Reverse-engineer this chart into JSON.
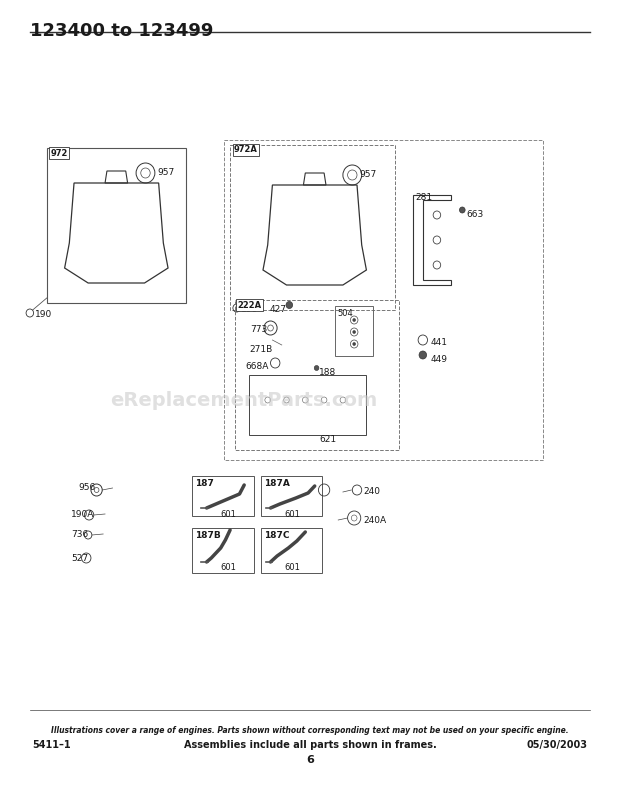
{
  "title": "123400 to 123499",
  "footer_italic": "Illustrations cover a range of engines. Parts shown without corresponding text may not be used on your specific engine.",
  "footer_left": "5411–1",
  "footer_center": "Assemblies include all parts shown in frames.",
  "footer_right": "05/30/2003",
  "footer_page": "6",
  "watermark": "eReplacementParts.com",
  "bg_color": "#ffffff",
  "text_color": "#1a1a1a",
  "box_color": "#333333",
  "diagram_bg": "#f5f5f0"
}
